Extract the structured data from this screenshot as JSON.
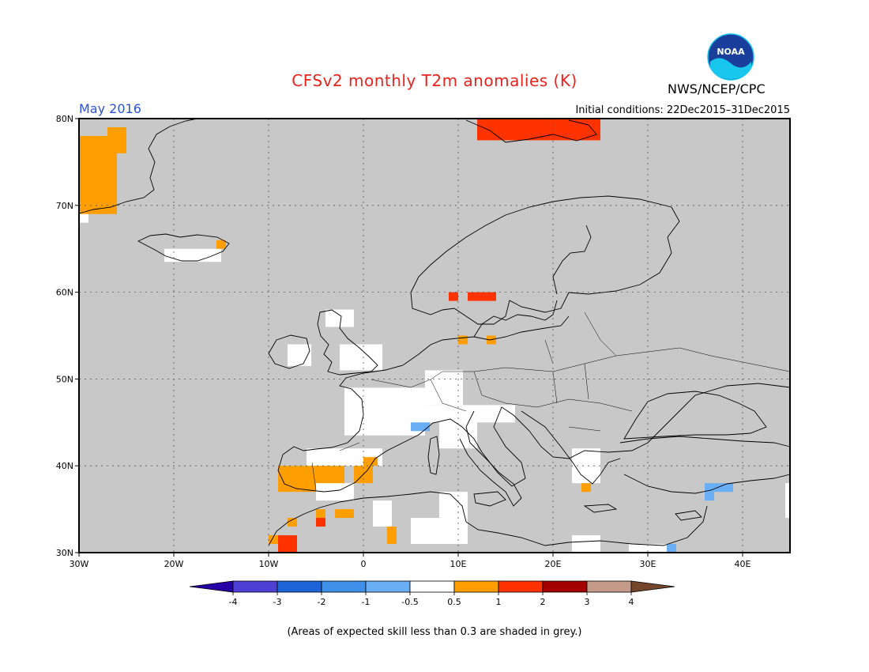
{
  "title": "CFSv2 monthly T2m anomalies (K)",
  "month_label": "May 2016",
  "initial_conditions": "Initial conditions: 22Dec2015–31Dec2015",
  "agency": "NWS/NCEP/CPC",
  "logo_text": "NOAA",
  "footnote": "(Areas of expected skill less than 0.3 are shaded in grey.)",
  "map": {
    "lon_range": [
      -30,
      45
    ],
    "lat_range": [
      30,
      80
    ],
    "lon_ticks": [
      {
        "value": -30,
        "label": "30W"
      },
      {
        "value": -20,
        "label": "20W"
      },
      {
        "value": -10,
        "label": "10W"
      },
      {
        "value": 0,
        "label": "0"
      },
      {
        "value": 10,
        "label": "10E"
      },
      {
        "value": 20,
        "label": "20E"
      },
      {
        "value": 30,
        "label": "30E"
      },
      {
        "value": 40,
        "label": "40E"
      }
    ],
    "lat_ticks": [
      {
        "value": 30,
        "label": "30N"
      },
      {
        "value": 40,
        "label": "40N"
      },
      {
        "value": 50,
        "label": "50N"
      },
      {
        "value": 60,
        "label": "60N"
      },
      {
        "value": 70,
        "label": "70N"
      },
      {
        "value": 80,
        "label": "80N"
      }
    ],
    "grid": true,
    "background_color": "#c8c8c8",
    "anomaly_regions": [
      {
        "color": "#ff9e00",
        "lon": [
          -30,
          -26
        ],
        "lat": [
          69,
          78
        ]
      },
      {
        "color": "#ff9e00",
        "lon": [
          -27,
          -25
        ],
        "lat": [
          76,
          79
        ]
      },
      {
        "color": "#ffffff",
        "lon": [
          -30,
          -29
        ],
        "lat": [
          68,
          69
        ]
      },
      {
        "color": "#ffffff",
        "lon": [
          -21,
          -15
        ],
        "lat": [
          63.5,
          65
        ]
      },
      {
        "color": "#ff9e00",
        "lon": [
          -15.5,
          -14.5
        ],
        "lat": [
          65,
          66
        ]
      },
      {
        "color": "#ff3300",
        "lon": [
          12,
          25
        ],
        "lat": [
          77.5,
          80
        ]
      },
      {
        "color": "#ff3300",
        "lon": [
          9,
          10
        ],
        "lat": [
          59,
          60
        ]
      },
      {
        "color": "#ff3300",
        "lon": [
          11,
          14
        ],
        "lat": [
          59,
          60
        ]
      },
      {
        "color": "#ffffff",
        "lon": [
          -2.5,
          2
        ],
        "lat": [
          51,
          54
        ]
      },
      {
        "color": "#ffffff",
        "lon": [
          -8,
          -5.5
        ],
        "lat": [
          51.5,
          54
        ]
      },
      {
        "color": "#ffffff",
        "lon": [
          -4,
          -1
        ],
        "lat": [
          56,
          58
        ]
      },
      {
        "color": "#ff9e00",
        "lon": [
          10,
          11
        ],
        "lat": [
          54,
          55
        ]
      },
      {
        "color": "#ff9e00",
        "lon": [
          13,
          14
        ],
        "lat": [
          54,
          55
        ]
      },
      {
        "color": "#ffffff",
        "lon": [
          -2,
          6.5
        ],
        "lat": [
          43.5,
          49
        ]
      },
      {
        "color": "#ffffff",
        "lon": [
          6.5,
          10.5
        ],
        "lat": [
          47,
          51
        ]
      },
      {
        "color": "#ffffff",
        "lon": [
          5,
          8
        ],
        "lat": [
          45,
          47
        ]
      },
      {
        "color": "#ffffff",
        "lon": [
          8,
          12
        ],
        "lat": [
          42,
          47
        ]
      },
      {
        "color": "#ffffff",
        "lon": [
          12,
          16
        ],
        "lat": [
          45,
          47
        ]
      },
      {
        "color": "#6aaef5",
        "lon": [
          5,
          7
        ],
        "lat": [
          44,
          45
        ]
      },
      {
        "color": "#ffffff",
        "lon": [
          -6,
          2
        ],
        "lat": [
          40,
          42
        ]
      },
      {
        "color": "#ff9e00",
        "lon": [
          -9,
          -2
        ],
        "lat": [
          37,
          40
        ]
      },
      {
        "color": "#ff9e00",
        "lon": [
          -1,
          1
        ],
        "lat": [
          38,
          40
        ]
      },
      {
        "color": "#ff9e00",
        "lon": [
          0,
          1.5
        ],
        "lat": [
          40,
          41
        ]
      },
      {
        "color": "#ffffff",
        "lon": [
          -5,
          -1
        ],
        "lat": [
          36,
          38
        ]
      },
      {
        "color": "#ffffff",
        "lon": [
          8,
          11
        ],
        "lat": [
          31,
          37
        ]
      },
      {
        "color": "#ffffff",
        "lon": [
          5,
          8
        ],
        "lat": [
          31,
          34
        ]
      },
      {
        "color": "#ffffff",
        "lon": [
          1,
          3
        ],
        "lat": [
          33,
          36
        ]
      },
      {
        "color": "#ff9e00",
        "lon": [
          2.5,
          3.5
        ],
        "lat": [
          31,
          33
        ]
      },
      {
        "color": "#ff9e00",
        "lon": [
          -5,
          -4
        ],
        "lat": [
          34,
          35
        ]
      },
      {
        "color": "#ff9e00",
        "lon": [
          -3,
          -1
        ],
        "lat": [
          34,
          35
        ]
      },
      {
        "color": "#ff9e00",
        "lon": [
          -8,
          -7
        ],
        "lat": [
          33,
          34
        ]
      },
      {
        "color": "#ff3300",
        "lon": [
          -9,
          -7
        ],
        "lat": [
          30,
          32
        ]
      },
      {
        "color": "#ff3300",
        "lon": [
          -5,
          -4
        ],
        "lat": [
          33,
          34
        ]
      },
      {
        "color": "#ff9e00",
        "lon": [
          -10,
          -9
        ],
        "lat": [
          31,
          32
        ]
      },
      {
        "color": "#ffffff",
        "lon": [
          22,
          25
        ],
        "lat": [
          30,
          32
        ]
      },
      {
        "color": "#ffffff",
        "lon": [
          28,
          32
        ],
        "lat": [
          30,
          31
        ]
      },
      {
        "color": "#6aaef5",
        "lon": [
          32,
          33
        ],
        "lat": [
          30,
          31
        ]
      },
      {
        "color": "#6aaef5",
        "lon": [
          36,
          39
        ],
        "lat": [
          37,
          38
        ]
      },
      {
        "color": "#6aaef5",
        "lon": [
          36,
          37
        ],
        "lat": [
          36,
          37
        ]
      },
      {
        "color": "#ffffff",
        "lon": [
          44.5,
          45
        ],
        "lat": [
          34,
          38
        ]
      },
      {
        "color": "#ffffff",
        "lon": [
          22,
          25
        ],
        "lat": [
          38,
          42
        ]
      },
      {
        "color": "#ff9e00",
        "lon": [
          23,
          24
        ],
        "lat": [
          37,
          38
        ]
      }
    ]
  },
  "colorbar": {
    "boundaries": [
      "-4",
      "-3",
      "-2",
      "-1",
      "-0.5",
      "0.5",
      "1",
      "2",
      "3",
      "4"
    ],
    "colors": [
      "#2600a6",
      "#4e3fd4",
      "#1c64d8",
      "#3d8fe8",
      "#6aaef5",
      "#ffffff",
      "#ff9e00",
      "#ff3300",
      "#a40000",
      "#c49a8a",
      "#75452c"
    ]
  }
}
